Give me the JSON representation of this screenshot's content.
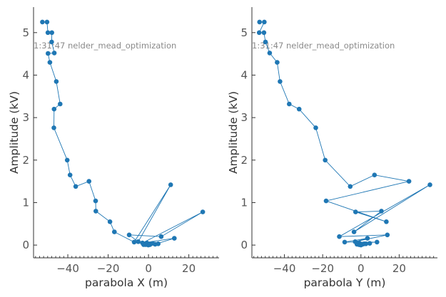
{
  "figure_title": "",
  "colors": {
    "series": "#1f77b4",
    "axis": "#333333",
    "tick_text": "#555555",
    "annotation": "#8a8a8a"
  },
  "chart_data": [
    {
      "type": "scatter",
      "title": "",
      "xlabel": "parabola X (m)",
      "ylabel": "Amplitude (kV)",
      "annotation": "1:31:47 nelder_mead_optimization",
      "xlim": [
        -57,
        35
      ],
      "ylim": [
        -0.3,
        5.6
      ],
      "xticks": [
        -40,
        -20,
        0,
        20
      ],
      "yticks": [
        0,
        1,
        2,
        3,
        4,
        5
      ],
      "xtick_labels": [
        "−40",
        "−20",
        "0",
        "20"
      ],
      "ytick_labels": [
        "0",
        "1",
        "2",
        "3",
        "4",
        "5"
      ],
      "connected": true,
      "series": [
        {
          "name": "parabola X",
          "x": [
            -52.6,
            -50.3,
            -49.9,
            -47.9,
            -48.0,
            -46.7,
            -49.8,
            -48.9,
            -45.7,
            -43.8,
            -46.8,
            -46.9,
            -40.3,
            -38.9,
            -36.1,
            -29.5,
            -26.2,
            -26.1,
            -19.1,
            -16.9,
            -7.1,
            11.0,
            -5.1,
            -9.6,
            6.3,
            26.9,
            -3.0,
            12.8,
            3.3,
            -0.8,
            4.8,
            -2.4,
            2.1,
            0.6,
            -1.4,
            -0.3,
            0.7,
            -0.4,
            0.2,
            -0.1
          ],
          "y": [
            5.25,
            5.25,
            5.0,
            5.0,
            4.78,
            4.52,
            4.51,
            4.3,
            3.85,
            3.32,
            3.2,
            2.76,
            2.0,
            1.65,
            1.38,
            1.5,
            1.04,
            0.8,
            0.55,
            0.31,
            0.07,
            1.42,
            0.08,
            0.24,
            0.2,
            0.78,
            0.05,
            0.16,
            0.02,
            0.05,
            0.03,
            0.01,
            0.04,
            0.02,
            0.01,
            0.03,
            0.01,
            0.02,
            0.01,
            0.0
          ]
        }
      ]
    },
    {
      "type": "scatter",
      "title": "",
      "xlabel": "parabola Y (m)",
      "ylabel": "Amplitude (kV)",
      "annotation": "1:31:47 nelder_mead_optimization",
      "xlim": [
        -57,
        40
      ],
      "ylim": [
        -0.3,
        5.6
      ],
      "xticks": [
        -40,
        -20,
        0,
        20
      ],
      "yticks": [
        0,
        1,
        2,
        3,
        4,
        5
      ],
      "xtick_labels": [
        "−40",
        "−20",
        "0",
        "20"
      ],
      "ytick_labels": [
        "0",
        "1",
        "2",
        "3",
        "4",
        "5"
      ],
      "connected": true,
      "series": [
        {
          "name": "parabola Y",
          "x": [
            -53.0,
            -50.5,
            -53.2,
            -50.7,
            -49.9,
            -47.7,
            -43.8,
            -42.3,
            -37.5,
            -32.3,
            -23.6,
            -18.7,
            -5.6,
            7.1,
            25.1,
            -18.2,
            13.3,
            -2.8,
            10.7,
            -3.6,
            36.1,
            -11.3,
            13.8,
            -3.0,
            3.4,
            -8.5,
            8.4,
            -0.9,
            4.6,
            -2.1,
            1.7,
            0.3,
            -1.0,
            2.6,
            -0.5,
            0.9,
            0.1,
            -0.3,
            0.4,
            0.0
          ],
          "y": [
            5.25,
            5.25,
            5.0,
            5.0,
            4.78,
            4.52,
            4.3,
            3.85,
            3.32,
            3.2,
            2.76,
            2.0,
            1.38,
            1.65,
            1.5,
            1.04,
            0.55,
            0.78,
            0.8,
            0.31,
            1.42,
            0.2,
            0.24,
            0.08,
            0.16,
            0.07,
            0.07,
            0.05,
            0.04,
            0.02,
            0.03,
            0.02,
            0.01,
            0.03,
            0.01,
            0.02,
            0.01,
            0.01,
            0.02,
            0.0
          ]
        }
      ]
    }
  ]
}
